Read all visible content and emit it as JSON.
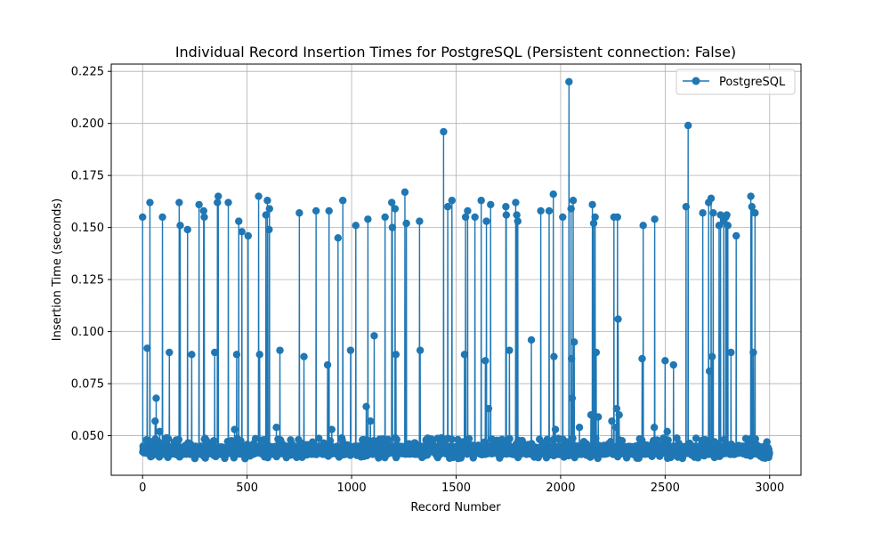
{
  "chart_data": {
    "type": "line",
    "title": "Individual Record Insertion Times for PostgreSQL (Persistent connection: False)",
    "xlabel": "Record Number",
    "ylabel": "Insertion Time (seconds)",
    "xlim": [
      -150,
      3150
    ],
    "ylim": [
      0.031,
      0.2285
    ],
    "xticks": [
      0,
      500,
      1000,
      1500,
      2000,
      2500,
      3000
    ],
    "yticks": [
      0.05,
      0.075,
      0.1,
      0.125,
      0.15,
      0.175,
      0.2,
      0.225
    ],
    "xtick_labels": [
      "0",
      "500",
      "1000",
      "1500",
      "2000",
      "2500",
      "3000"
    ],
    "ytick_labels": [
      "0.050",
      "0.075",
      "0.100",
      "0.125",
      "0.150",
      "0.175",
      "0.200",
      "0.225"
    ],
    "grid": true,
    "legend_position": "top-right",
    "series": [
      {
        "name": "PostgreSQL",
        "color": "#1f77b4",
        "marker": "circle",
        "n_points": 3000,
        "baseline": 0.043,
        "baseline_min": 0.039,
        "baseline_max": 0.049,
        "spikes": [
          [
            0,
            0.155
          ],
          [
            22,
            0.092
          ],
          [
            35,
            0.162
          ],
          [
            60,
            0.057
          ],
          [
            65,
            0.068
          ],
          [
            82,
            0.052
          ],
          [
            95,
            0.155
          ],
          [
            128,
            0.09
          ],
          [
            175,
            0.162
          ],
          [
            180,
            0.151
          ],
          [
            215,
            0.149
          ],
          [
            235,
            0.089
          ],
          [
            270,
            0.161
          ],
          [
            292,
            0.158
          ],
          [
            295,
            0.155
          ],
          [
            345,
            0.09
          ],
          [
            358,
            0.162
          ],
          [
            362,
            0.165
          ],
          [
            410,
            0.162
          ],
          [
            440,
            0.053
          ],
          [
            450,
            0.089
          ],
          [
            460,
            0.153
          ],
          [
            475,
            0.148
          ],
          [
            505,
            0.146
          ],
          [
            555,
            0.165
          ],
          [
            560,
            0.089
          ],
          [
            590,
            0.156
          ],
          [
            597,
            0.163
          ],
          [
            605,
            0.149
          ],
          [
            607,
            0.159
          ],
          [
            640,
            0.054
          ],
          [
            657,
            0.091
          ],
          [
            750,
            0.157
          ],
          [
            772,
            0.088
          ],
          [
            830,
            0.158
          ],
          [
            885,
            0.084
          ],
          [
            892,
            0.158
          ],
          [
            905,
            0.053
          ],
          [
            935,
            0.145
          ],
          [
            958,
            0.163
          ],
          [
            995,
            0.091
          ],
          [
            1020,
            0.151
          ],
          [
            1070,
            0.064
          ],
          [
            1078,
            0.154
          ],
          [
            1090,
            0.057
          ],
          [
            1108,
            0.098
          ],
          [
            1160,
            0.155
          ],
          [
            1192,
            0.162
          ],
          [
            1195,
            0.15
          ],
          [
            1208,
            0.159
          ],
          [
            1212,
            0.089
          ],
          [
            1255,
            0.167
          ],
          [
            1262,
            0.152
          ],
          [
            1325,
            0.153
          ],
          [
            1328,
            0.091
          ],
          [
            1430,
            0.049
          ],
          [
            1440,
            0.196
          ],
          [
            1460,
            0.16
          ],
          [
            1480,
            0.163
          ],
          [
            1540,
            0.089
          ],
          [
            1545,
            0.155
          ],
          [
            1555,
            0.158
          ],
          [
            1590,
            0.155
          ],
          [
            1620,
            0.163
          ],
          [
            1640,
            0.086
          ],
          [
            1645,
            0.153
          ],
          [
            1655,
            0.063
          ],
          [
            1665,
            0.161
          ],
          [
            1738,
            0.16
          ],
          [
            1740,
            0.156
          ],
          [
            1755,
            0.091
          ],
          [
            1785,
            0.162
          ],
          [
            1790,
            0.156
          ],
          [
            1795,
            0.153
          ],
          [
            1860,
            0.096
          ],
          [
            1905,
            0.158
          ],
          [
            1945,
            0.158
          ],
          [
            1965,
            0.166
          ],
          [
            1968,
            0.088
          ],
          [
            1975,
            0.053
          ],
          [
            2010,
            0.155
          ],
          [
            2040,
            0.22
          ],
          [
            2050,
            0.159
          ],
          [
            2052,
            0.087
          ],
          [
            2055,
            0.068
          ],
          [
            2060,
            0.163
          ],
          [
            2065,
            0.095
          ],
          [
            2090,
            0.054
          ],
          [
            2145,
            0.06
          ],
          [
            2152,
            0.161
          ],
          [
            2158,
            0.152
          ],
          [
            2165,
            0.155
          ],
          [
            2170,
            0.09
          ],
          [
            2180,
            0.059
          ],
          [
            2245,
            0.057
          ],
          [
            2255,
            0.155
          ],
          [
            2265,
            0.054
          ],
          [
            2268,
            0.063
          ],
          [
            2272,
            0.155
          ],
          [
            2275,
            0.106
          ],
          [
            2280,
            0.06
          ],
          [
            2390,
            0.087
          ],
          [
            2395,
            0.151
          ],
          [
            2448,
            0.054
          ],
          [
            2450,
            0.154
          ],
          [
            2500,
            0.086
          ],
          [
            2510,
            0.052
          ],
          [
            2540,
            0.084
          ],
          [
            2600,
            0.16
          ],
          [
            2610,
            0.199
          ],
          [
            2680,
            0.157
          ],
          [
            2708,
            0.162
          ],
          [
            2712,
            0.081
          ],
          [
            2720,
            0.164
          ],
          [
            2725,
            0.088
          ],
          [
            2730,
            0.157
          ],
          [
            2758,
            0.151
          ],
          [
            2765,
            0.156
          ],
          [
            2780,
            0.153
          ],
          [
            2790,
            0.155
          ],
          [
            2795,
            0.156
          ],
          [
            2800,
            0.151
          ],
          [
            2815,
            0.09
          ],
          [
            2840,
            0.146
          ],
          [
            2910,
            0.165
          ],
          [
            2915,
            0.16
          ],
          [
            2922,
            0.09
          ],
          [
            2930,
            0.157
          ]
        ]
      }
    ]
  }
}
